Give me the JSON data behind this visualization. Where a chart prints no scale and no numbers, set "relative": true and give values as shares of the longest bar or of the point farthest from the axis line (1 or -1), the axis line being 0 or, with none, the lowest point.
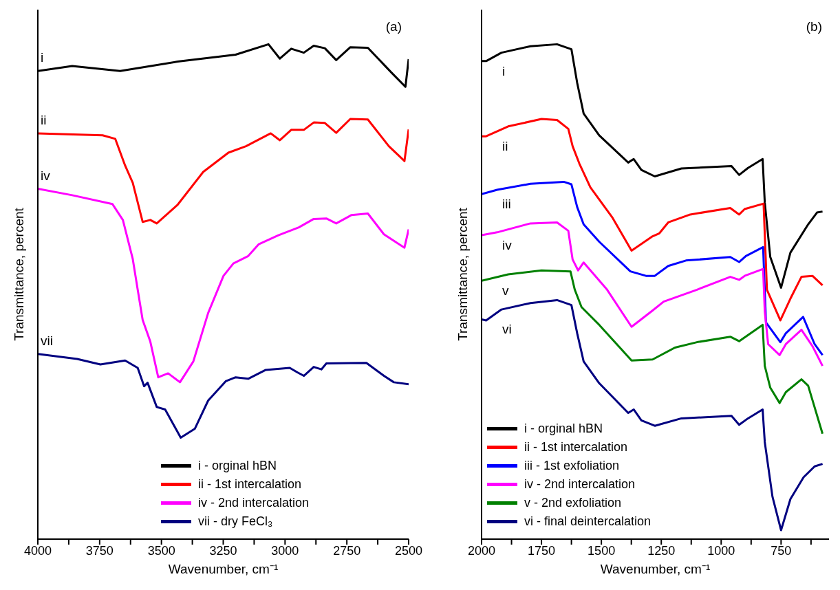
{
  "chart_data": [
    {
      "type": "line",
      "relative": true,
      "xlabel": "Wavenumber, cm⁻¹",
      "ylabel": "Transmittance, percent",
      "xlim": [
        4000,
        2500
      ],
      "xticks": [
        4000,
        {
          "value": 3875,
          "label": null
        },
        3750,
        {
          "value": 3625,
          "label": null
        },
        3500,
        {
          "value": 3375,
          "label": null
        },
        3250,
        {
          "value": 3125,
          "label": null
        },
        3000,
        {
          "value": 2875,
          "label": null
        },
        2750,
        {
          "value": 2625,
          "label": null
        },
        2500
      ],
      "legend": "bottom right",
      "annotations": [
        "(a)",
        "i",
        "ii",
        "iv",
        "vii"
      ],
      "series": [
        {
          "name": "i - orginal hBN",
          "color": "#000000",
          "x": [
            4000,
            3861,
            3667,
            3434,
            3200,
            3067,
            3021,
            2975,
            2924,
            2884,
            2839,
            2793,
            2736,
            2665,
            2568,
            2513,
            2500
          ],
          "values": [
            0.946,
            0.956,
            0.946,
            0.965,
            0.979,
            1.0,
            0.971,
            0.991,
            0.983,
            0.997,
            0.992,
            0.968,
            0.994,
            0.993,
            0.942,
            0.914,
            0.97
          ]
        },
        {
          "name": "ii - 1st intercalation",
          "color": "#ff0000",
          "x": [
            4000,
            3738,
            3687,
            3647,
            3616,
            3576,
            3545,
            3519,
            3434,
            3331,
            3229,
            3158,
            3058,
            3021,
            2975,
            2924,
            2884,
            2839,
            2793,
            2736,
            2665,
            2580,
            2517,
            2500
          ],
          "values": [
            0.82,
            0.816,
            0.809,
            0.755,
            0.72,
            0.641,
            0.645,
            0.638,
            0.676,
            0.742,
            0.781,
            0.794,
            0.82,
            0.806,
            0.827,
            0.827,
            0.842,
            0.841,
            0.821,
            0.849,
            0.848,
            0.794,
            0.764,
            0.828
          ]
        },
        {
          "name": "iv - 2nd intercalation",
          "color": "#ff00ff",
          "x": [
            4000,
            3861,
            3698,
            3656,
            3616,
            3596,
            3576,
            3545,
            3513,
            3473,
            3425,
            3371,
            3311,
            3249,
            3209,
            3149,
            3106,
            3027,
            2944,
            2884,
            2833,
            2793,
            2731,
            2665,
            2600,
            2517,
            2500
          ],
          "values": [
            0.708,
            0.695,
            0.677,
            0.645,
            0.566,
            0.504,
            0.443,
            0.399,
            0.327,
            0.335,
            0.317,
            0.359,
            0.457,
            0.532,
            0.557,
            0.572,
            0.596,
            0.614,
            0.63,
            0.647,
            0.648,
            0.638,
            0.655,
            0.658,
            0.616,
            0.589,
            0.626
          ]
        },
        {
          "name": "vii - dry FeCl₃",
          "color": "#000080",
          "x": [
            4000,
            3841,
            3747,
            3647,
            3596,
            3570,
            3556,
            3519,
            3485,
            3422,
            3365,
            3311,
            3240,
            3200,
            3149,
            3078,
            2981,
            2950,
            2924,
            2884,
            2853,
            2833,
            2671,
            2600,
            2560,
            2500
          ],
          "values": [
            0.374,
            0.364,
            0.353,
            0.361,
            0.346,
            0.309,
            0.316,
            0.267,
            0.262,
            0.205,
            0.223,
            0.28,
            0.319,
            0.327,
            0.324,
            0.342,
            0.346,
            0.337,
            0.33,
            0.348,
            0.343,
            0.355,
            0.356,
            0.33,
            0.317,
            0.313
          ]
        }
      ]
    },
    {
      "type": "line",
      "relative": true,
      "xlabel": "Wavenumber, cm⁻¹",
      "ylabel": "Transmittance, percent",
      "xlim": [
        2000,
        550
      ],
      "xticks": [
        2000,
        {
          "value": 1875,
          "label": null
        },
        1750,
        {
          "value": 1625,
          "label": null
        },
        1500,
        {
          "value": 1375,
          "label": null
        },
        1250,
        {
          "value": 1125,
          "label": null
        },
        1000,
        {
          "value": 875,
          "label": null
        },
        750,
        {
          "value": 625,
          "label": null
        }
      ],
      "legend": "bottom left",
      "annotations": [
        "(b)",
        "i",
        "ii",
        "iii",
        "iv",
        "v",
        "vi"
      ],
      "series": [
        {
          "name": "i - orginal hBN",
          "color": "#000000",
          "x": [
            2000,
            1981,
            1917,
            1796,
            1685,
            1625,
            1601,
            1574,
            1509,
            1388,
            1365,
            1333,
            1277,
            1166,
            957,
            925,
            888,
            827,
            818,
            795,
            750,
            711,
            637,
            600,
            577
          ],
          "values": [
            0.966,
            0.966,
            0.983,
            0.996,
            1.0,
            0.99,
            0.922,
            0.86,
            0.816,
            0.761,
            0.768,
            0.746,
            0.733,
            0.749,
            0.754,
            0.736,
            0.75,
            0.768,
            0.68,
            0.57,
            0.508,
            0.579,
            0.636,
            0.66,
            0.662
          ]
        },
        {
          "name": "ii - 1st intercalation",
          "color": "#ff0000",
          "x": [
            2000,
            1981,
            1889,
            1750,
            1685,
            1638,
            1620,
            1592,
            1546,
            1453,
            1374,
            1286,
            1258,
            1221,
            1129,
            962,
            925,
            902,
            823,
            809,
            753,
            711,
            665,
            619,
            577
          ],
          "values": [
            0.814,
            0.814,
            0.834,
            0.849,
            0.847,
            0.829,
            0.794,
            0.759,
            0.711,
            0.649,
            0.583,
            0.612,
            0.618,
            0.64,
            0.656,
            0.669,
            0.656,
            0.667,
            0.678,
            0.504,
            0.442,
            0.486,
            0.53,
            0.532,
            0.513
          ]
        },
        {
          "name": "iii - 1st exfoliation",
          "color": "#0000ff",
          "x": [
            2000,
            1935,
            1796,
            1657,
            1625,
            1601,
            1574,
            1509,
            1379,
            1314,
            1277,
            1221,
            1147,
            962,
            925,
            897,
            825,
            813,
            753,
            730,
            658,
            610,
            577
          ],
          "values": [
            0.697,
            0.706,
            0.718,
            0.722,
            0.717,
            0.671,
            0.636,
            0.601,
            0.541,
            0.532,
            0.532,
            0.552,
            0.563,
            0.57,
            0.56,
            0.572,
            0.59,
            0.438,
            0.398,
            0.416,
            0.449,
            0.394,
            0.372
          ]
        },
        {
          "name": "iv - 2nd intercalation",
          "color": "#ff00ff",
          "x": [
            2000,
            1935,
            1796,
            1685,
            1638,
            1620,
            1597,
            1574,
            1476,
            1374,
            1286,
            1240,
            1101,
            962,
            925,
            902,
            825,
            818,
            804,
            756,
            730,
            665,
            619,
            577
          ],
          "values": [
            0.614,
            0.62,
            0.638,
            0.64,
            0.623,
            0.565,
            0.543,
            0.559,
            0.504,
            0.429,
            0.462,
            0.48,
            0.504,
            0.53,
            0.524,
            0.532,
            0.546,
            0.46,
            0.394,
            0.372,
            0.394,
            0.423,
            0.39,
            0.35
          ]
        },
        {
          "name": "v - 2nd exfoliation",
          "color": "#008000",
          "x": [
            2000,
            1889,
            1750,
            1629,
            1611,
            1583,
            1509,
            1374,
            1286,
            1193,
            1101,
            962,
            925,
            827,
            818,
            795,
            756,
            730,
            665,
            637,
            577
          ],
          "values": [
            0.522,
            0.535,
            0.543,
            0.541,
            0.504,
            0.469,
            0.433,
            0.361,
            0.363,
            0.387,
            0.398,
            0.409,
            0.4,
            0.433,
            0.35,
            0.306,
            0.275,
            0.297,
            0.323,
            0.31,
            0.213
          ]
        },
        {
          "name": "vi - final deintercalation",
          "color": "#000080",
          "x": [
            2000,
            1981,
            1917,
            1796,
            1685,
            1625,
            1601,
            1574,
            1509,
            1388,
            1365,
            1333,
            1277,
            1166,
            957,
            925,
            888,
            827,
            818,
            786,
            750,
            711,
            656,
            610,
            577
          ],
          "values": [
            0.444,
            0.442,
            0.464,
            0.477,
            0.483,
            0.473,
            0.416,
            0.359,
            0.315,
            0.255,
            0.262,
            0.24,
            0.229,
            0.244,
            0.249,
            0.231,
            0.244,
            0.262,
            0.196,
            0.086,
            0.018,
            0.081,
            0.125,
            0.147,
            0.152
          ]
        }
      ]
    }
  ]
}
